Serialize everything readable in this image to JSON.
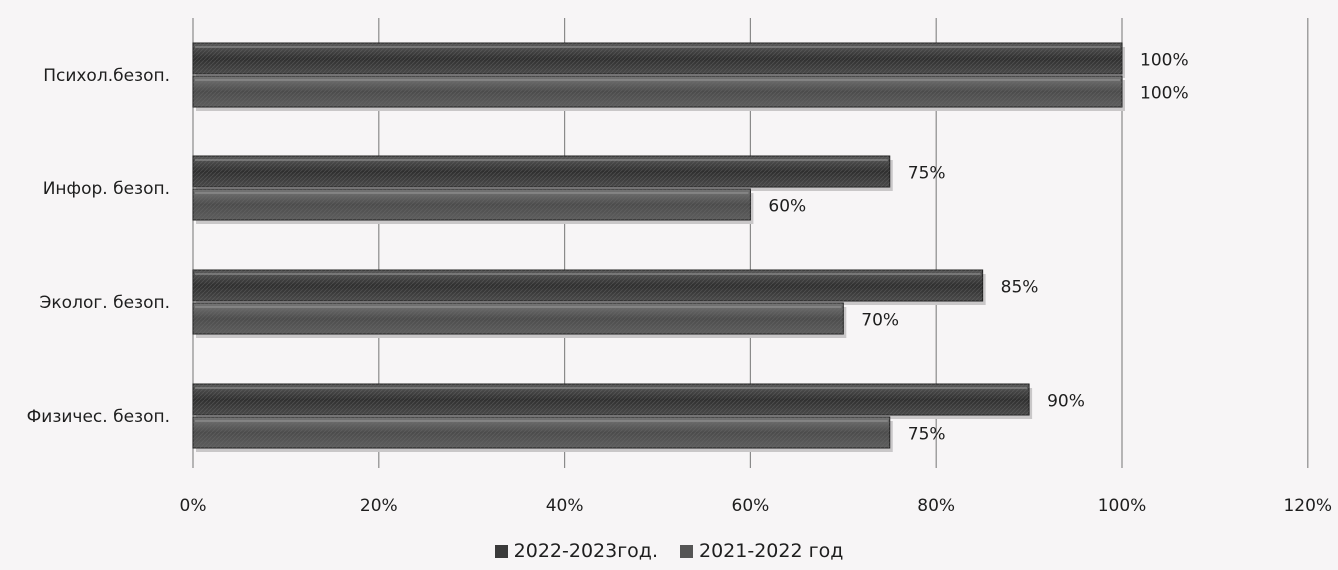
{
  "chart_data": {
    "type": "bar",
    "orientation": "horizontal",
    "categories": [
      "Психол.безоп.",
      "Инфор. безоп.",
      "Эколог. безоп.",
      "Физичес. безоп."
    ],
    "series": [
      {
        "name": "2022-2023год.",
        "values": [
          100,
          75,
          85,
          90
        ],
        "labels": [
          "100%",
          "75%",
          "85%",
          "90%"
        ],
        "color": "#3a3a3a"
      },
      {
        "name": "2021-2022 год",
        "values": [
          100,
          60,
          70,
          75
        ],
        "labels": [
          "100%",
          "60%",
          "70%",
          "75%"
        ],
        "color": "#555555"
      }
    ],
    "xlim": [
      0,
      120
    ],
    "xticks": [
      "0%",
      "20%",
      "40%",
      "60%",
      "80%",
      "100%",
      "120%"
    ],
    "grid": true,
    "legend_position": "bottom"
  }
}
